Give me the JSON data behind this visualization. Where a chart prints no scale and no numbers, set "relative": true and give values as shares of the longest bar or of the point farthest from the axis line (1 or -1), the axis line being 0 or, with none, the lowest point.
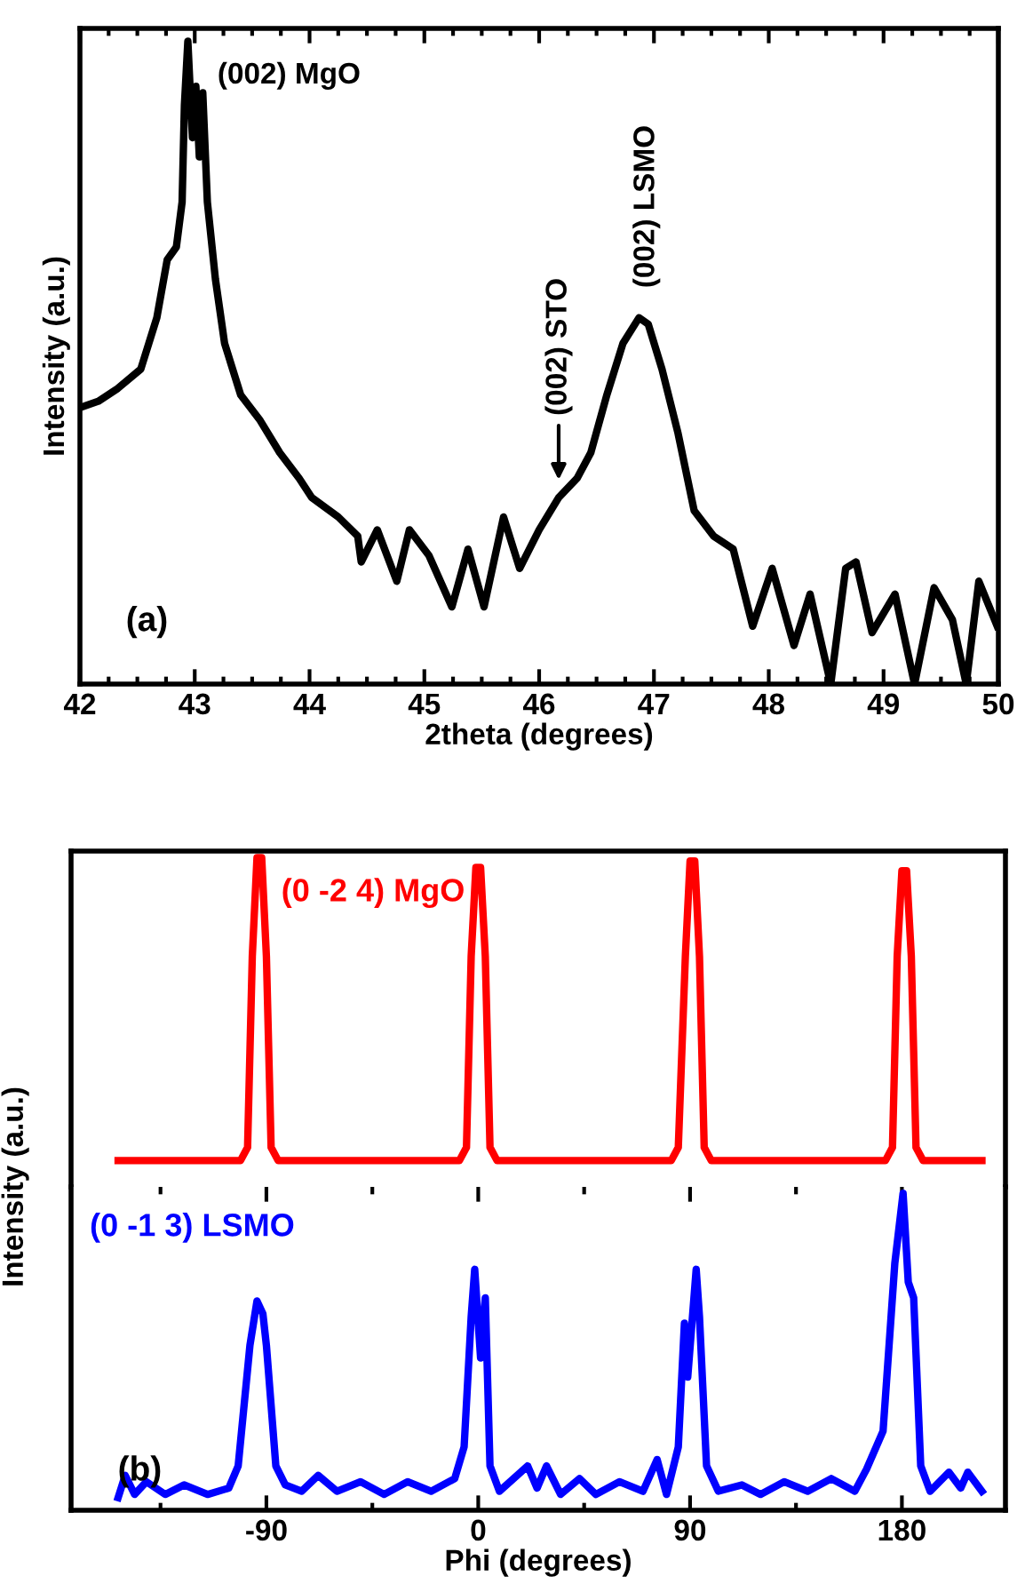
{
  "chart_data": [
    {
      "type": "line",
      "relative": true,
      "xlabel": "2theta (degrees)",
      "ylabel": "Intensity (a.u.)",
      "xlim": [
        42,
        50
      ],
      "xticks": [
        42,
        43,
        44,
        45,
        46,
        47,
        48,
        49,
        50
      ],
      "tick_labels": "x",
      "legend": false,
      "grid": false,
      "series": [
        {
          "color": "#000000",
          "x": [
            42.0,
            42.16,
            42.33,
            42.53,
            42.67,
            42.76,
            42.84,
            42.89,
            42.91,
            42.94,
            42.98,
            43.01,
            43.04,
            43.07,
            43.11,
            43.18,
            43.26,
            43.4,
            43.57,
            43.74,
            43.91,
            44.02,
            44.25,
            44.42,
            44.45,
            44.59,
            44.76,
            44.87,
            45.04,
            45.24,
            45.38,
            45.52,
            45.69,
            45.83,
            46.0,
            46.17,
            46.33,
            46.45,
            46.59,
            46.73,
            46.87,
            46.95,
            47.07,
            47.21,
            47.35,
            47.52,
            47.69,
            47.86,
            48.03,
            48.22,
            48.36,
            48.54,
            48.67,
            48.76,
            48.9,
            49.1,
            49.27,
            49.44,
            49.6,
            49.72,
            49.83,
            49.99
          ],
          "values": [
            0.43,
            0.44,
            0.46,
            0.49,
            0.57,
            0.66,
            0.68,
            0.75,
            0.9,
            1.0,
            0.85,
            0.93,
            0.82,
            0.92,
            0.75,
            0.63,
            0.53,
            0.45,
            0.41,
            0.36,
            0.32,
            0.29,
            0.26,
            0.23,
            0.19,
            0.24,
            0.16,
            0.24,
            0.2,
            0.12,
            0.21,
            0.12,
            0.26,
            0.18,
            0.24,
            0.29,
            0.32,
            0.36,
            0.45,
            0.53,
            0.57,
            0.56,
            0.49,
            0.39,
            0.27,
            0.23,
            0.21,
            0.09,
            0.18,
            0.06,
            0.14,
            0.0,
            0.18,
            0.19,
            0.08,
            0.14,
            0.0,
            0.15,
            0.1,
            0.0,
            0.16,
            0.09
          ]
        }
      ],
      "annotations": [
        {
          "text": "(002) MgO",
          "x": 42.94,
          "y": 1.0
        },
        {
          "text": "(002) STO",
          "x": 46.17,
          "y": 0.31
        },
        {
          "text": "(002) LSMO",
          "x": 46.87,
          "y": 0.57
        },
        "(a)"
      ]
    },
    {
      "type": "line",
      "relative": true,
      "xlim": [
        -173,
        224
      ],
      "tick_labels": false,
      "legend": false,
      "grid": false,
      "series": [
        {
          "name": "(0 -2 4) MgO",
          "color": "#ff0000",
          "x": [
            -153,
            -130,
            -110,
            -101,
            -98,
            -96,
            -94,
            -92,
            -90,
            -88,
            -85,
            -60,
            -30,
            -8,
            -5,
            -3,
            -1,
            1,
            3,
            5,
            8,
            40,
            70,
            82,
            85,
            88,
            90,
            92,
            94,
            96,
            99,
            130,
            160,
            173,
            176,
            178,
            180,
            182,
            184,
            186,
            189,
            214
          ],
          "values": [
            0.08,
            0.08,
            0.08,
            0.08,
            0.12,
            0.7,
            1.0,
            1.0,
            0.7,
            0.12,
            0.08,
            0.08,
            0.08,
            0.08,
            0.12,
            0.7,
            0.97,
            0.97,
            0.7,
            0.12,
            0.08,
            0.08,
            0.08,
            0.08,
            0.12,
            0.7,
            0.99,
            0.99,
            0.7,
            0.12,
            0.08,
            0.08,
            0.08,
            0.08,
            0.12,
            0.7,
            0.96,
            0.96,
            0.7,
            0.12,
            0.08,
            0.08
          ]
        }
      ]
    },
    {
      "type": "line",
      "relative": true,
      "xlabel": "Phi (degrees)",
      "ylabel": "Intensity (a.u.)",
      "xlim": [
        -173,
        224
      ],
      "xticks": [
        -90,
        0,
        90,
        180
      ],
      "tick_labels": "x",
      "legend": false,
      "grid": false,
      "series": [
        {
          "name": "(0 -1 3) LSMO",
          "color": "#0000ff",
          "x": [
            -153,
            -150,
            -146,
            -141,
            -133,
            -125,
            -115,
            -106,
            -102,
            -97,
            -94,
            -91.5,
            -90,
            -86,
            -82,
            -75,
            -68,
            -60,
            -50,
            -40,
            -30,
            -20,
            -10,
            -6,
            -3,
            -1.5,
            1,
            3,
            5,
            9,
            15,
            21,
            25,
            29,
            35,
            43,
            50,
            60,
            70,
            76,
            80,
            85,
            87.6,
            89,
            92.6,
            94,
            97,
            102,
            112,
            120,
            130,
            140,
            150,
            160,
            165,
            172,
            177,
            180.5,
            182.7,
            185,
            188,
            192,
            200,
            205,
            208,
            214
          ],
          "values": [
            0.04,
            0.11,
            0.05,
            0.09,
            0.05,
            0.08,
            0.05,
            0.07,
            0.14,
            0.52,
            0.66,
            0.62,
            0.52,
            0.14,
            0.08,
            0.06,
            0.11,
            0.06,
            0.09,
            0.05,
            0.09,
            0.06,
            0.1,
            0.2,
            0.61,
            0.76,
            0.48,
            0.67,
            0.14,
            0.06,
            0.1,
            0.14,
            0.07,
            0.14,
            0.05,
            0.1,
            0.05,
            0.09,
            0.06,
            0.16,
            0.05,
            0.2,
            0.59,
            0.42,
            0.76,
            0.61,
            0.14,
            0.06,
            0.08,
            0.05,
            0.09,
            0.06,
            0.1,
            0.06,
            0.13,
            0.25,
            0.78,
            1.0,
            0.72,
            0.67,
            0.14,
            0.06,
            0.12,
            0.07,
            0.12,
            0.06
          ]
        }
      ],
      "annotations": [
        "(b)"
      ]
    }
  ]
}
